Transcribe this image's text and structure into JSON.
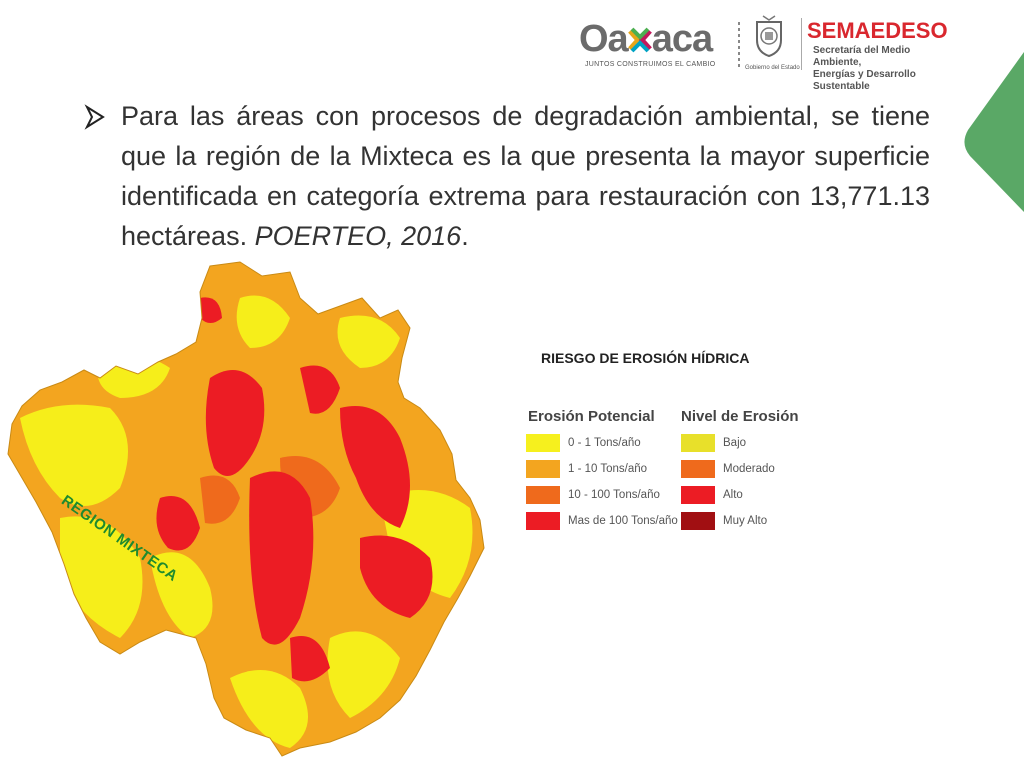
{
  "header": {
    "oaxaca_logo": "Oa  aca",
    "oaxaca_tagline": "JUNTOS CONSTRUIMOS EL CAMBIO",
    "seal_caption": "Gobierno del Estado",
    "semaedeso_title": "SEMAEDESO",
    "semaedeso_subtitle_1": "Secretaría del Medio Ambiente,",
    "semaedeso_subtitle_2": "Energías y Desarrollo Sustentable"
  },
  "paragraph": {
    "bullet_icon": "arrow-bullet-icon",
    "text": "Para las áreas con procesos de degradación ambiental, se tiene que la región de la Mixteca es la que presenta la mayor superficie identificada en categoría extrema para restauración con 13,771.13 hectáreas. ",
    "citation": "POERTEO, 2016",
    "period": "."
  },
  "map": {
    "region_label": "REGION MIXTECA"
  },
  "legend": {
    "title": "RIESGO DE EROSIÓN HÍDRICA",
    "erosion_potencial": {
      "heading": "Erosión Potencial",
      "items": [
        {
          "label": "0 - 1 Tons/año",
          "color": "#f6f01e"
        },
        {
          "label": "1 - 10 Tons/año",
          "color": "#f3a51f"
        },
        {
          "label": "10 - 100 Tons/año",
          "color": "#ef6a1c"
        },
        {
          "label": "Mas de 100 Tons/año",
          "color": "#ec1c24"
        }
      ]
    },
    "nivel_erosion": {
      "heading": "Nivel de Erosión",
      "items": [
        {
          "label": "Bajo",
          "color": "#e8e02a"
        },
        {
          "label": "Moderado",
          "color": "#ef6a1c"
        },
        {
          "label": "Alto",
          "color": "#ec1c24"
        },
        {
          "label": "Muy Alto",
          "color": "#a10f12"
        }
      ]
    }
  },
  "colors": {
    "accent_green": "#5aa866",
    "brand_red": "#d9272e",
    "map_yellow": "#f6ee1a",
    "map_orange": "#f3a51f",
    "map_red": "#ec1c24"
  }
}
